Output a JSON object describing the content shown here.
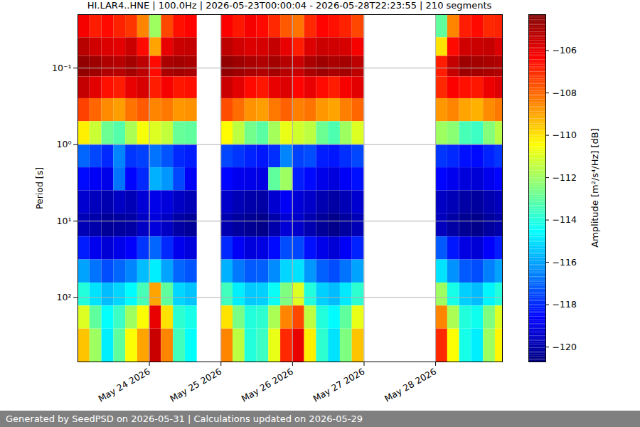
{
  "chart_data": {
    "type": "heatmap",
    "title": "HI.LAR4..HNE | 100.0Hz | 2026-05-23T00:00:04 - 2026-05-28T22:23:55 | 210 segments",
    "footer": "Generated by SeedPSD on 2026-05-31 | Calculations updated on 2026-05-29",
    "y_label": "Period [s]",
    "log": "y",
    "grid": true,
    "color": "jet",
    "xlim": [
      "2026-05-23T00:00Z",
      "2026-05-28T22:24Z"
    ],
    "ylim": [
      0.02,
      690
    ],
    "xticks": [
      {
        "value": "2026-05-24T00:00Z",
        "label": "May 24 2026"
      },
      {
        "value": "2026-05-25T00:00Z",
        "label": "May 25 2026"
      },
      {
        "value": "2026-05-26T00:00Z",
        "label": "May 26 2026"
      },
      {
        "value": "2026-05-27T00:00Z",
        "label": "May 27 2026"
      },
      {
        "value": "2026-05-28T00:00Z",
        "label": "May 28 2026"
      }
    ],
    "yticks": [
      {
        "value": 0.1,
        "label": "10⁻¹"
      },
      {
        "value": 1,
        "label": "10⁰"
      },
      {
        "value": 10,
        "label": "10¹"
      },
      {
        "value": 100,
        "label": "10²"
      }
    ],
    "x_edges": [
      "2026-05-23T00:00Z",
      "2026-05-23T04:00Z",
      "2026-05-23T08:00Z",
      "2026-05-23T12:00Z",
      "2026-05-23T16:00Z",
      "2026-05-23T20:00Z",
      "2026-05-24T00:00Z",
      "2026-05-24T04:00Z",
      "2026-05-24T08:00Z",
      "2026-05-24T12:00Z",
      "2026-05-24T16:00Z",
      "2026-05-24T20:00Z",
      "2026-05-25T00:00Z",
      "2026-05-25T04:00Z",
      "2026-05-25T08:00Z",
      "2026-05-25T12:00Z",
      "2026-05-25T16:00Z",
      "2026-05-25T20:00Z",
      "2026-05-26T00:00Z",
      "2026-05-26T04:00Z",
      "2026-05-26T08:00Z",
      "2026-05-26T12:00Z",
      "2026-05-26T16:00Z",
      "2026-05-26T20:00Z",
      "2026-05-27T00:00Z",
      "2026-05-27T04:00Z",
      "2026-05-27T08:00Z",
      "2026-05-27T12:00Z",
      "2026-05-27T16:00Z",
      "2026-05-27T20:00Z",
      "2026-05-28T00:00Z",
      "2026-05-28T04:00Z",
      "2026-05-28T08:00Z",
      "2026-05-28T12:00Z",
      "2026-05-28T16:00Z",
      "2026-05-28T20:00Z",
      "2026-05-29T00:00Z"
    ],
    "y_edges": [
      0.02,
      0.04,
      0.07,
      0.13,
      0.25,
      0.5,
      1,
      2,
      4,
      8,
      16,
      32,
      64,
      128,
      256,
      690
    ],
    "values": [
      [
        -106.2,
        -106.8,
        -106.5,
        -106.9,
        -107.2,
        -108.5,
        -112,
        -107.5,
        -106.6,
        -106.4,
        null,
        null,
        -106.3,
        -106.7,
        -106.2,
        -106.5,
        -107,
        -107.8,
        -108.2,
        -107,
        -106.4,
        -106.6,
        -106.9,
        -107.5,
        null,
        null,
        null,
        null,
        null,
        null,
        -113,
        -108.5,
        -106.8,
        -106.5,
        -107,
        -106.9
      ],
      [
        -105.2,
        -105.6,
        -105.8,
        -105.9,
        -105.5,
        -106.5,
        -109,
        -106,
        -105.5,
        -105.4,
        null,
        null,
        -105.3,
        -105.6,
        -105.8,
        -105.7,
        -105.4,
        -106,
        -106.8,
        -105.8,
        -105.5,
        -105.6,
        -105.7,
        -106.2,
        null,
        null,
        null,
        null,
        null,
        null,
        -110,
        -106.5,
        -105.6,
        -105.5,
        -105.4,
        -105.8
      ],
      [
        -104.6,
        -104.8,
        -105.1,
        -105.2,
        -104.9,
        -105.3,
        -106.5,
        -105,
        -104.9,
        -105,
        null,
        null,
        -104.6,
        -104.8,
        -105,
        -105.1,
        -104.9,
        -105.2,
        -105.5,
        -105,
        -104.8,
        -105,
        -104.9,
        -105.3,
        null,
        null,
        null,
        null,
        null,
        null,
        -106.8,
        -105.4,
        -104.8,
        -104.9,
        -105,
        -105.1
      ],
      [
        -105.4,
        -105.9,
        -106.6,
        -106.8,
        -106,
        -105.7,
        -106.8,
        -106.2,
        -106.7,
        -106.6,
        null,
        null,
        -105.5,
        -105.9,
        -106.5,
        -106.7,
        -106,
        -105.8,
        -106.4,
        -106,
        -106.5,
        -106.8,
        -106.2,
        -105.9,
        null,
        null,
        null,
        null,
        null,
        null,
        -107,
        -106.3,
        -106.6,
        -106.7,
        -106.1,
        -105.8
      ],
      [
        -107.4,
        -108,
        -108.6,
        -108.9,
        -108.2,
        -107.8,
        -108.5,
        -108.3,
        -108.8,
        -108.7,
        null,
        null,
        -107.6,
        -108.1,
        -108.7,
        -108.9,
        -108.3,
        -107.9,
        -108.4,
        -108.2,
        -108.8,
        -109,
        -108.4,
        -108,
        null,
        null,
        null,
        null,
        null,
        null,
        -108.8,
        -108.5,
        -109,
        -109.2,
        -108.6,
        -108.3
      ],
      [
        -110.2,
        -111.3,
        -112.8,
        -113.2,
        -111.8,
        -110.6,
        -111,
        -111.4,
        -112.9,
        -113,
        null,
        null,
        -110.4,
        -111.5,
        -112.7,
        -113.1,
        -111.9,
        -110.8,
        -111.2,
        -111.5,
        -112.8,
        -113.3,
        -112,
        -111,
        null,
        null,
        null,
        null,
        null,
        null,
        -112,
        -112.3,
        -113.4,
        -113.6,
        -112.4,
        -111.6
      ],
      [
        -117,
        -117.5,
        -118,
        -116.5,
        -117.8,
        -117.6,
        -116.8,
        -117.3,
        -118,
        -118.2,
        null,
        null,
        -117.5,
        -117.8,
        -118.1,
        -118.3,
        -117.9,
        -116.5,
        -117.6,
        -117.4,
        -118.2,
        -118.3,
        -117.9,
        -117.5,
        null,
        null,
        null,
        null,
        null,
        null,
        -117.8,
        -118,
        -118.4,
        -118.5,
        -118.1,
        -117.8
      ],
      [
        -118.5,
        -118.8,
        -119,
        -116.8,
        -118.6,
        -118,
        -115.8,
        -116.2,
        -117.5,
        -118.8,
        null,
        null,
        -118.6,
        -118.9,
        -119,
        -119.1,
        -113,
        -112,
        -118.2,
        -118.5,
        -119,
        -119.2,
        -118.8,
        -118.4,
        null,
        null,
        null,
        null,
        null,
        null,
        -118.6,
        -118.9,
        -119.2,
        -119.3,
        -118.9,
        -118.6
      ],
      [
        -119.4,
        -119.7,
        -119.9,
        -119.6,
        -119.8,
        -119.3,
        -119,
        -119.2,
        -119.6,
        -119.8,
        null,
        null,
        -119.5,
        -119.8,
        -120,
        -120.1,
        -119.4,
        -118.8,
        -119.3,
        -119.5,
        -119.9,
        -120.1,
        -119.8,
        -119.4,
        null,
        null,
        null,
        null,
        null,
        null,
        -119.6,
        -119.8,
        -120.1,
        -120.2,
        -119.9,
        -119.7
      ],
      [
        -119.8,
        -120,
        -120.3,
        -120.2,
        -120.1,
        -119.6,
        -119.2,
        -119.6,
        -120.1,
        -120.3,
        null,
        null,
        -119.9,
        -120.2,
        -120.4,
        -120.5,
        -120,
        -119.3,
        -119.5,
        -119.9,
        -120.3,
        -120.5,
        -120.2,
        -119.8,
        null,
        null,
        null,
        null,
        null,
        null,
        -119.7,
        -120.1,
        -120.4,
        -120.5,
        -120.2,
        -120
      ],
      [
        -118.2,
        -118.9,
        -119.3,
        -119,
        -118.7,
        -117.8,
        -117,
        -118,
        -118.9,
        -119.2,
        null,
        null,
        -118,
        -118.8,
        -119.2,
        -119.1,
        -118.5,
        -117.4,
        -117.5,
        -118.4,
        -119,
        -119.3,
        -118.8,
        -118.1,
        null,
        null,
        null,
        null,
        null,
        null,
        -117.2,
        -118.3,
        -119.1,
        -119.3,
        -118.7,
        -118.2
      ],
      [
        -116,
        -116.8,
        -117.4,
        -117,
        -116.5,
        -115.6,
        -114.8,
        -116,
        -117,
        -117.3,
        null,
        null,
        -115.8,
        -116.7,
        -117.2,
        -117.1,
        -116.4,
        -115.2,
        -115,
        -116.2,
        -117.1,
        -117.4,
        -116.8,
        -116,
        null,
        null,
        null,
        null,
        null,
        null,
        -115,
        -116.3,
        -117.2,
        -117.4,
        -116.6,
        -116
      ],
      [
        -114,
        -115,
        -115.6,
        -115.2,
        -114.6,
        -113.4,
        -109,
        -113,
        -115.2,
        -115.5,
        null,
        null,
        -113.5,
        -114.8,
        -115.4,
        -115.3,
        -114.4,
        -112.5,
        -111,
        -114,
        -115.3,
        -115.6,
        -114.9,
        -113.8,
        null,
        null,
        null,
        null,
        null,
        null,
        -112,
        -114.2,
        -115.3,
        -115.6,
        -114.7,
        -114
      ],
      [
        -111,
        -113,
        -114.5,
        -113.6,
        -112,
        -110.5,
        -106,
        -110,
        -113.8,
        -114.2,
        null,
        null,
        -110,
        -112.6,
        -114,
        -113.8,
        -111.8,
        -108.5,
        -107.5,
        -111.5,
        -114,
        -114.6,
        -113,
        -110.8,
        null,
        null,
        null,
        null,
        null,
        null,
        -108.5,
        -111.8,
        -114,
        -114.3,
        -112.5,
        -111
      ],
      [
        -109.5,
        -112,
        -114.8,
        -113,
        -110.5,
        -109,
        -105.5,
        -108.5,
        -113.5,
        -114.5,
        null,
        null,
        -108.5,
        -111.5,
        -114,
        -113.6,
        -110.8,
        -107,
        -106,
        -110.2,
        -113.8,
        -115,
        -112.5,
        -109.5,
        null,
        null,
        null,
        null,
        null,
        null,
        -107,
        -110.5,
        -114.2,
        -114.8,
        -112,
        -110.3
      ]
    ],
    "colorbar": {
      "label": "Amplitude [m²/s⁴/Hz] [dB]",
      "range": [
        -120.7,
        -104.3
      ],
      "ticks": [
        -120,
        -118,
        -116,
        -114,
        -112,
        -110,
        -108,
        -106
      ]
    }
  }
}
